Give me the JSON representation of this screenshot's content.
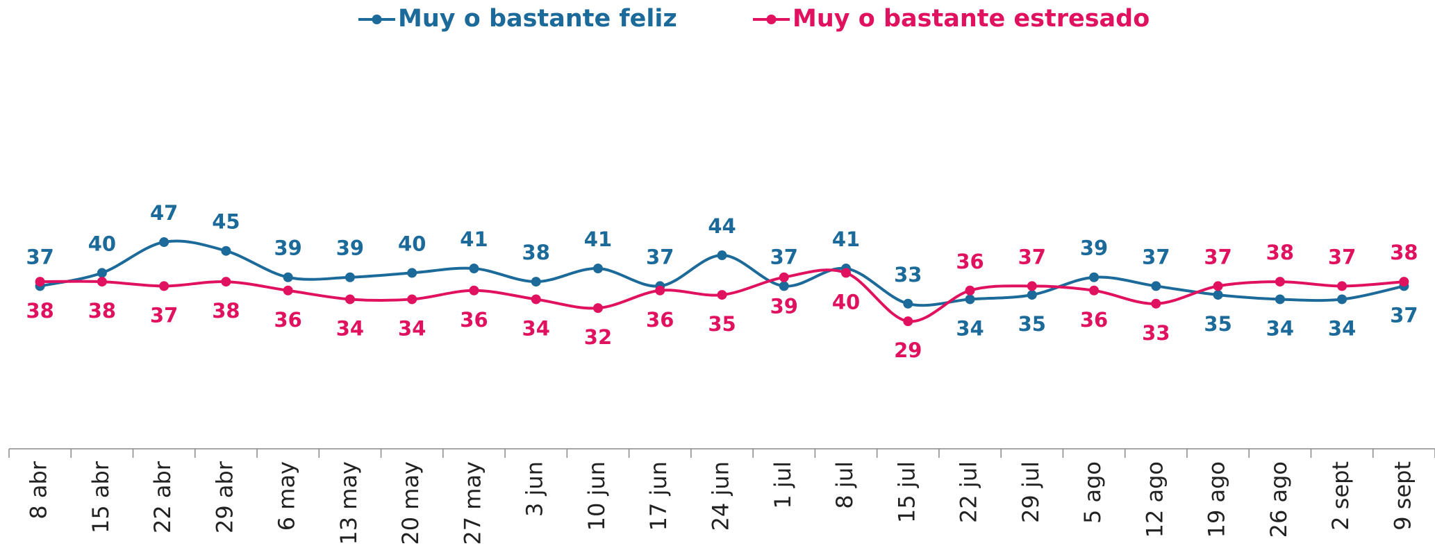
{
  "chart_data": {
    "type": "line",
    "categories": [
      "8 abr",
      "15 abr",
      "22 abr",
      "29 abr",
      "6 may",
      "13 may",
      "20 may",
      "27 may",
      "3 jun",
      "10 jun",
      "17 jun",
      "24 jun",
      "1 jul",
      "8 jul",
      "15 jul",
      "22 jul",
      "29 jul",
      "5 ago",
      "12 ago",
      "19 ago",
      "26 ago",
      "2 sept",
      "9 sept"
    ],
    "series": [
      {
        "name": "Muy o bastante feliz",
        "color": "#1b6a9a",
        "values": [
          37,
          40,
          47,
          45,
          39,
          39,
          40,
          41,
          38,
          41,
          37,
          44,
          37,
          41,
          33,
          34,
          35,
          39,
          37,
          35,
          34,
          34,
          37
        ]
      },
      {
        "name": "Muy o bastante estresado",
        "color": "#e0115f",
        "values": [
          38,
          38,
          37,
          38,
          36,
          34,
          34,
          36,
          34,
          32,
          36,
          35,
          39,
          40,
          29,
          36,
          37,
          36,
          33,
          37,
          38,
          37,
          38
        ]
      }
    ],
    "ylim": [
      0,
      100
    ]
  }
}
